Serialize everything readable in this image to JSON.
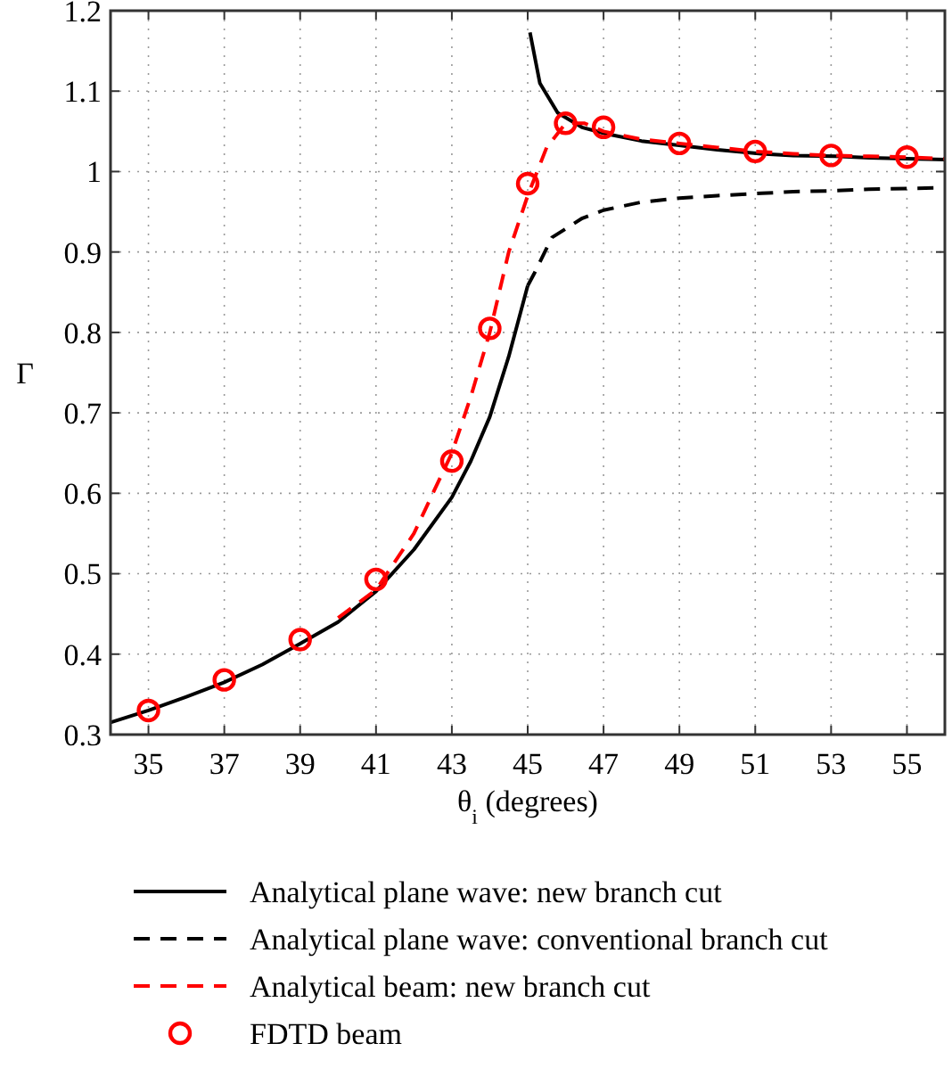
{
  "chart_data": {
    "type": "line",
    "xlabel": "θ$_{i}$ (degrees)",
    "ylabel": "Γ",
    "xlim": [
      34,
      56
    ],
    "ylim": [
      0.3,
      1.2
    ],
    "xticks": [
      35,
      37,
      39,
      41,
      43,
      45,
      47,
      49,
      51,
      53,
      55
    ],
    "yticks": [
      0.3,
      0.4,
      0.5,
      0.6,
      0.7,
      0.8,
      0.9,
      1,
      1.1,
      1.2
    ],
    "grid": true,
    "legend": "bottom",
    "series": [
      {
        "name": "Analytical plane wave: new branch cut",
        "color": "#000000",
        "line_style": "solid",
        "x": [
          34,
          35,
          36,
          37,
          38,
          39,
          40,
          41,
          42,
          43,
          43.5,
          44,
          44.5,
          45
        ],
        "values": [
          0.315,
          0.33,
          0.347,
          0.365,
          0.387,
          0.413,
          0.44,
          0.478,
          0.53,
          0.595,
          0.64,
          0.695,
          0.77,
          0.858
        ]
      },
      {
        "color": "#000000",
        "line_style": "solid",
        "x": [
          45.06,
          45.32,
          45.79,
          46.43,
          47.06,
          48,
          49.09,
          50,
          51.16,
          52,
          53.1,
          54,
          55,
          56
        ],
        "values": [
          1.173,
          1.11,
          1.073,
          1.055,
          1.047,
          1.038,
          1.032,
          1.027,
          1.022,
          1.02,
          1.019,
          1.017,
          1.016,
          1.015
        ]
      },
      {
        "name": "Analytical plane wave: conventional branch cut",
        "color": "#000000",
        "line_style": "dashed",
        "x": [
          45,
          45.17,
          45.64,
          46.44,
          47,
          48,
          49,
          50,
          51.17,
          52,
          53,
          54,
          55,
          56
        ],
        "values": [
          0.858,
          0.873,
          0.918,
          0.942,
          0.952,
          0.962,
          0.967,
          0.97,
          0.973,
          0.975,
          0.976,
          0.978,
          0.979,
          0.98
        ]
      },
      {
        "name": "Analytical beam: new branch cut",
        "color": "#ff0000",
        "line_style": "dashed",
        "x": [
          40,
          41,
          42,
          43,
          43.5,
          44,
          44.5,
          45,
          45.5,
          46,
          46.5,
          47,
          48,
          49,
          50,
          51,
          52,
          53,
          54,
          55,
          56
        ],
        "values": [
          0.445,
          0.48,
          0.55,
          0.65,
          0.72,
          0.8,
          0.9,
          0.97,
          1.03,
          1.06,
          1.06,
          1.05,
          1.04,
          1.035,
          1.03,
          1.025,
          1.022,
          1.02,
          1.019,
          1.018,
          1.016
        ]
      },
      {
        "name": "FDTD beam",
        "type": "scatter",
        "color": "#ff0000",
        "marker": "circle",
        "x": [
          35,
          37,
          39,
          41,
          43,
          44,
          45,
          46,
          47,
          49,
          51,
          53,
          55
        ],
        "values": [
          0.33,
          0.368,
          0.418,
          0.493,
          0.64,
          0.805,
          0.985,
          1.06,
          1.055,
          1.035,
          1.025,
          1.02,
          1.018
        ]
      }
    ]
  }
}
